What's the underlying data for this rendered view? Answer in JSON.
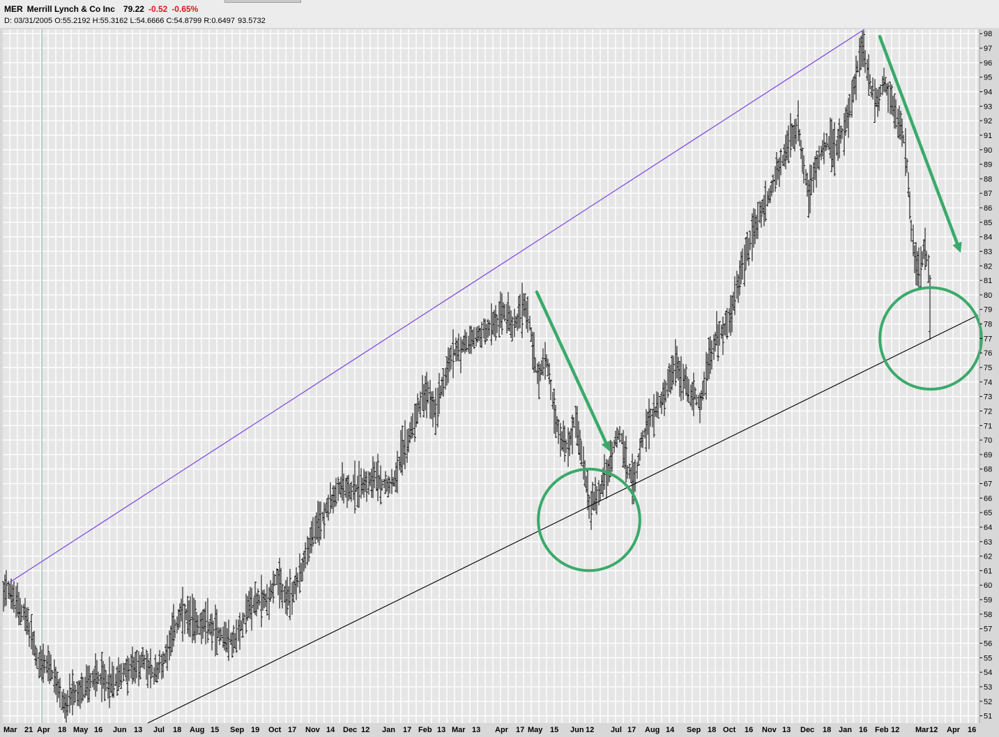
{
  "header": {
    "symbol": "MER",
    "name": "Merrill Lynch & Co Inc",
    "last": "79.22",
    "change": "-0.52",
    "change_pct": "-0.65%",
    "bar_info": {
      "date_label": "D:",
      "date": "03/31/2005",
      "open_label": "O:",
      "open": "55.2192",
      "high_label": "H:",
      "high": "55.3162",
      "low_label": "L:",
      "low": "54.6666",
      "close_label": "C:",
      "close": "54.8799",
      "r_label": "R:",
      "r": "0.6497",
      "extra": "93.5732"
    }
  },
  "colors": {
    "background": "#e6e6e6",
    "grid": "#ffffff",
    "bars": "#000000",
    "upper_channel": "#7b3fe4",
    "lower_channel": "#000000",
    "annotation": "#3aaa6a",
    "negative": "#e0141e"
  },
  "chart_data": {
    "type": "bar",
    "subtype": "ohlc",
    "symbol": "MER",
    "period": "daily",
    "x_tick_labels": [
      "Mar",
      "21",
      "Apr",
      "18",
      "May",
      "16",
      "Jun",
      "13",
      "Jul",
      "18",
      "Aug",
      "15",
      "Sep",
      "19",
      "Oct",
      "17",
      "Nov",
      "14",
      "Dec",
      "12",
      "Jan",
      "17",
      "Feb",
      "13",
      "Mar",
      "13",
      "Apr",
      "17",
      "May",
      "15",
      "Jun",
      "12",
      "Jul",
      "17",
      "Aug",
      "14",
      "Sep",
      "18",
      "Oct",
      "16",
      "Nov",
      "13",
      "Dec",
      "18",
      "Jan",
      "16",
      "Feb",
      "12",
      "Mar",
      "12",
      "Apr",
      "16"
    ],
    "y_axis": {
      "min": 50.5,
      "max": 98.3,
      "ticks": [
        51,
        52,
        53,
        54,
        55,
        56,
        57,
        58,
        59,
        60,
        61,
        62,
        63,
        64,
        65,
        66,
        67,
        68,
        69,
        70,
        71,
        72,
        73,
        74,
        75,
        76,
        77,
        78,
        79,
        80,
        81,
        82,
        83,
        84,
        85,
        86,
        87,
        88,
        89,
        90,
        91,
        92,
        93,
        94,
        95,
        96,
        97,
        98
      ],
      "position": "right"
    },
    "grid": true,
    "path_points": [
      [
        0,
        58
      ],
      [
        8,
        60.2
      ],
      [
        20,
        59
      ],
      [
        35,
        58
      ],
      [
        45,
        56.5
      ],
      [
        55,
        54.5
      ],
      [
        70,
        54.5
      ],
      [
        82,
        53
      ],
      [
        95,
        51.5
      ],
      [
        105,
        52.5
      ],
      [
        115,
        52.5
      ],
      [
        125,
        53.2
      ],
      [
        140,
        53.8
      ],
      [
        160,
        53.2
      ],
      [
        175,
        54
      ],
      [
        190,
        54.2
      ],
      [
        205,
        54.8
      ],
      [
        220,
        53.8
      ],
      [
        235,
        54.8
      ],
      [
        245,
        56.5
      ],
      [
        260,
        58
      ],
      [
        280,
        57.5
      ],
      [
        300,
        57.2
      ],
      [
        320,
        56.5
      ],
      [
        335,
        56
      ],
      [
        345,
        57
      ],
      [
        355,
        58.5
      ],
      [
        375,
        59
      ],
      [
        385,
        59
      ],
      [
        395,
        60.5
      ],
      [
        405,
        59.5
      ],
      [
        415,
        59
      ],
      [
        425,
        60
      ],
      [
        435,
        61.5
      ],
      [
        445,
        63
      ],
      [
        460,
        64.5
      ],
      [
        470,
        65.5
      ],
      [
        480,
        66
      ],
      [
        490,
        67
      ],
      [
        505,
        66.5
      ],
      [
        520,
        67
      ],
      [
        535,
        67.5
      ],
      [
        550,
        67
      ],
      [
        565,
        67.2
      ],
      [
        575,
        69
      ],
      [
        585,
        70
      ],
      [
        595,
        71.5
      ],
      [
        605,
        73
      ],
      [
        615,
        73
      ],
      [
        625,
        72
      ],
      [
        635,
        74
      ],
      [
        650,
        76
      ],
      [
        665,
        76.5
      ],
      [
        680,
        77
      ],
      [
        695,
        77.5
      ],
      [
        710,
        78
      ],
      [
        725,
        79
      ],
      [
        735,
        77.5
      ],
      [
        745,
        78.5
      ],
      [
        752,
        79.5
      ],
      [
        760,
        78
      ],
      [
        770,
        74.5
      ],
      [
        778,
        75
      ],
      [
        785,
        75.5
      ],
      [
        795,
        72
      ],
      [
        805,
        70
      ],
      [
        815,
        69.5
      ],
      [
        825,
        71.5
      ],
      [
        835,
        69
      ],
      [
        845,
        65.5
      ],
      [
        855,
        66
      ],
      [
        865,
        67
      ],
      [
        875,
        68
      ],
      [
        882,
        70
      ],
      [
        890,
        70.5
      ],
      [
        900,
        68
      ],
      [
        910,
        67
      ],
      [
        920,
        70
      ],
      [
        930,
        71
      ],
      [
        940,
        72
      ],
      [
        950,
        73
      ],
      [
        960,
        74
      ],
      [
        968,
        75.2
      ],
      [
        978,
        74.5
      ],
      [
        988,
        73.5
      ],
      [
        998,
        73
      ],
      [
        1005,
        72.5
      ],
      [
        1015,
        75
      ],
      [
        1025,
        77
      ],
      [
        1035,
        77.5
      ],
      [
        1045,
        78
      ],
      [
        1055,
        80
      ],
      [
        1065,
        82
      ],
      [
        1075,
        83.5
      ],
      [
        1085,
        85
      ],
      [
        1095,
        86
      ],
      [
        1105,
        87
      ],
      [
        1115,
        88.5
      ],
      [
        1125,
        89.5
      ],
      [
        1135,
        91
      ],
      [
        1145,
        91.5
      ],
      [
        1152,
        89
      ],
      [
        1160,
        87
      ],
      [
        1170,
        89
      ],
      [
        1180,
        90
      ],
      [
        1190,
        90.5
      ],
      [
        1200,
        90
      ],
      [
        1210,
        91.5
      ],
      [
        1220,
        93
      ],
      [
        1228,
        95
      ],
      [
        1236,
        97
      ],
      [
        1242,
        96
      ],
      [
        1250,
        94
      ],
      [
        1260,
        93.5
      ],
      [
        1268,
        94.5
      ],
      [
        1278,
        93.5
      ],
      [
        1288,
        92
      ],
      [
        1298,
        90.5
      ],
      [
        1303,
        87.5
      ],
      [
        1307,
        84.5
      ],
      [
        1313,
        82
      ],
      [
        1320,
        81.5
      ],
      [
        1326,
        83.5
      ],
      [
        1331,
        82
      ],
      [
        1336,
        78
      ]
    ],
    "upper_channel_line": {
      "from": {
        "i": 14,
        "price": 60.2
      },
      "to": {
        "i": 1240,
        "price": 98.3
      }
    },
    "lower_channel_line": {
      "from": {
        "i": 212,
        "price": 50.5
      },
      "to": {
        "i": 1403,
        "price": 78.6
      }
    },
    "annotations": [
      {
        "type": "arrow",
        "from": {
          "i": 770,
          "price": 80.2
        },
        "to": {
          "i": 875,
          "price": 69.2
        }
      },
      {
        "type": "arrow",
        "from": {
          "i": 1262,
          "price": 97.8
        },
        "to": {
          "i": 1378,
          "price": 82.9
        }
      },
      {
        "type": "circle",
        "center": {
          "i": 845,
          "price": 64.5
        },
        "radius": 3.5
      },
      {
        "type": "circle",
        "center": {
          "i": 1335,
          "price": 77
        },
        "radius": 3.5
      }
    ]
  }
}
